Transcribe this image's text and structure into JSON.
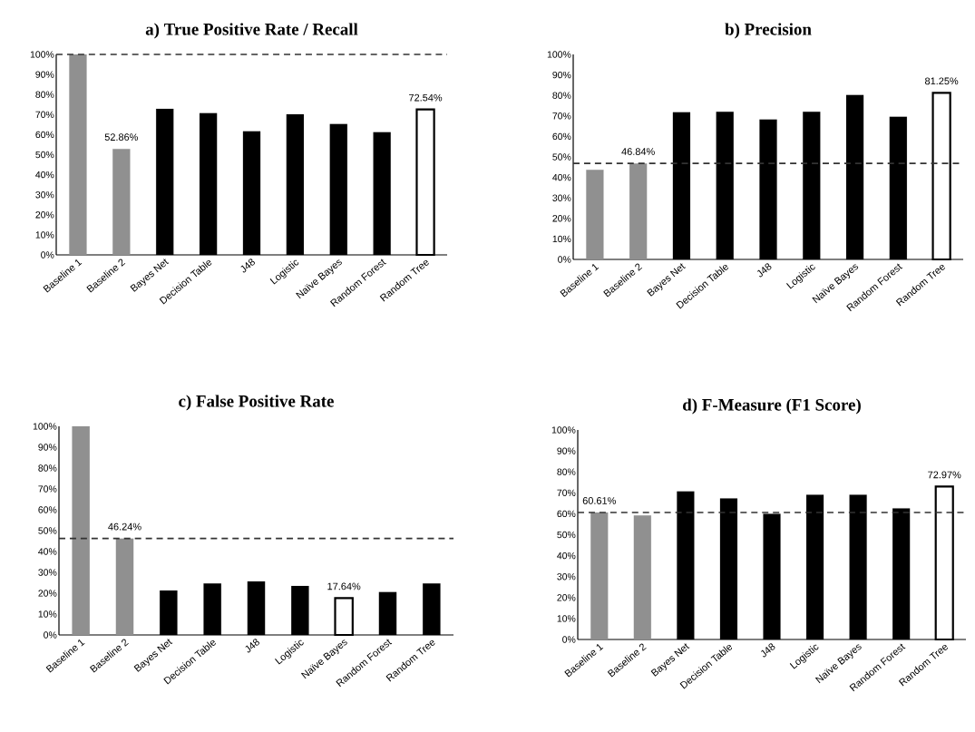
{
  "chart_data": [
    {
      "type": "bar",
      "title": "a) True Positive Rate / Recall",
      "categories": [
        "Baseline 1",
        "Baseline 2",
        "Bayes Net",
        "Decision Table",
        "J48",
        "Logistic",
        "Naïve Bayes",
        "Random Forest",
        "Random Tree"
      ],
      "values": [
        100,
        52.86,
        72.9,
        70.7,
        61.7,
        70.1,
        65.3,
        61.2,
        72.54
      ],
      "colors": [
        "#909090",
        "#909090",
        "#000000",
        "#000000",
        "#000000",
        "#000000",
        "#000000",
        "#000000",
        "#ffffff"
      ],
      "ylim": [
        0,
        100
      ],
      "yticks": [
        {
          "value": 0,
          "label": "0%"
        },
        {
          "value": 10,
          "label": "10%"
        },
        {
          "value": 20,
          "label": "20%"
        },
        {
          "value": 30,
          "label": "30%"
        },
        {
          "value": 40,
          "label": "40%"
        },
        {
          "value": 50,
          "label": "50%"
        },
        {
          "value": 60,
          "label": "60%"
        },
        {
          "value": 70,
          "label": "70%"
        },
        {
          "value": 80,
          "label": "80%"
        },
        {
          "value": 90,
          "label": "90%"
        },
        {
          "value": 100,
          "label": "100%"
        }
      ],
      "ref_lines": [
        {
          "axis": "y",
          "value": 100,
          "line_style": "dashed"
        }
      ],
      "annotations": [
        {
          "text": "52.86%",
          "x": "Baseline 2",
          "y": 52.86
        },
        {
          "text": "72.54%",
          "x": "Random Tree",
          "y": 72.54
        }
      ]
    },
    {
      "type": "bar",
      "title": "b) Precision",
      "categories": [
        "Baseline 1",
        "Baseline 2",
        "Bayes Net",
        "Decision Table",
        "J48",
        "Logistic",
        "Naïve Bayes",
        "Random Forest",
        "Random Tree"
      ],
      "values": [
        43.7,
        46.84,
        71.8,
        72.0,
        68.3,
        72.0,
        80.2,
        69.6,
        81.25
      ],
      "colors": [
        "#909090",
        "#909090",
        "#000000",
        "#000000",
        "#000000",
        "#000000",
        "#000000",
        "#000000",
        "#ffffff"
      ],
      "ylim": [
        0,
        100
      ],
      "yticks": [
        {
          "value": 0,
          "label": "0%"
        },
        {
          "value": 10,
          "label": "10%"
        },
        {
          "value": 20,
          "label": "20%"
        },
        {
          "value": 30,
          "label": "30%"
        },
        {
          "value": 40,
          "label": "40%"
        },
        {
          "value": 50,
          "label": "50%"
        },
        {
          "value": 60,
          "label": "60%"
        },
        {
          "value": 70,
          "label": "70%"
        },
        {
          "value": 80,
          "label": "80%"
        },
        {
          "value": 90,
          "label": "90%"
        },
        {
          "value": 100,
          "label": "100%"
        }
      ],
      "ref_lines": [
        {
          "axis": "y",
          "value": 46.84,
          "line_style": "dashed"
        }
      ],
      "annotations": [
        {
          "text": "46.84%",
          "x": "Baseline 2",
          "y": 46.84
        },
        {
          "text": "81.25%",
          "x": "Random Tree",
          "y": 81.25
        }
      ]
    },
    {
      "type": "bar",
      "title": "c) False Positive Rate",
      "categories": [
        "Baseline 1",
        "Baseline 2",
        "Bayes Net",
        "Decision Table",
        "J48",
        "Logistic",
        "Naïve Bayes",
        "Random Forest",
        "Random Tree"
      ],
      "values": [
        100,
        46.24,
        21.3,
        24.7,
        25.7,
        23.5,
        17.64,
        20.6,
        24.7
      ],
      "colors": [
        "#909090",
        "#909090",
        "#000000",
        "#000000",
        "#000000",
        "#000000",
        "#ffffff",
        "#000000",
        "#000000"
      ],
      "ylim": [
        0,
        100
      ],
      "yticks": [
        {
          "value": 0,
          "label": "0%"
        },
        {
          "value": 10,
          "label": "10%"
        },
        {
          "value": 20,
          "label": "20%"
        },
        {
          "value": 30,
          "label": "30%"
        },
        {
          "value": 40,
          "label": "40%"
        },
        {
          "value": 50,
          "label": "50%"
        },
        {
          "value": 60,
          "label": "60%"
        },
        {
          "value": 70,
          "label": "70%"
        },
        {
          "value": 80,
          "label": "80%"
        },
        {
          "value": 90,
          "label": "90%"
        },
        {
          "value": 100,
          "label": "100%"
        }
      ],
      "ref_lines": [
        {
          "axis": "y",
          "value": 46.24,
          "line_style": "dashed"
        }
      ],
      "annotations": [
        {
          "text": "46.24%",
          "x": "Baseline 2",
          "y": 46.24
        },
        {
          "text": "17.64%",
          "x": "Naïve Bayes",
          "y": 17.64
        }
      ]
    },
    {
      "type": "bar",
      "title": "d) F-Measure (F1 Score)",
      "categories": [
        "Baseline 1",
        "Baseline 2",
        "Bayes Net",
        "Decision Table",
        "J48",
        "Logistic",
        "Naïve Bayes",
        "Random Forest",
        "Random Tree"
      ],
      "values": [
        60.61,
        59.2,
        70.7,
        67.3,
        60.0,
        69.1,
        69.1,
        62.6,
        72.97
      ],
      "colors": [
        "#909090",
        "#909090",
        "#000000",
        "#000000",
        "#000000",
        "#000000",
        "#000000",
        "#000000",
        "#ffffff"
      ],
      "ylim": [
        0,
        100
      ],
      "yticks": [
        {
          "value": 0,
          "label": "0%"
        },
        {
          "value": 10,
          "label": "10%"
        },
        {
          "value": 20,
          "label": "20%"
        },
        {
          "value": 30,
          "label": "30%"
        },
        {
          "value": 40,
          "label": "40%"
        },
        {
          "value": 50,
          "label": "50%"
        },
        {
          "value": 60,
          "label": "60%"
        },
        {
          "value": 70,
          "label": "70%"
        },
        {
          "value": 80,
          "label": "80%"
        },
        {
          "value": 90,
          "label": "90%"
        },
        {
          "value": 100,
          "label": "100%"
        }
      ],
      "ref_lines": [
        {
          "axis": "y",
          "value": 60.61,
          "line_style": "dashed"
        }
      ],
      "annotations": [
        {
          "text": "60.61%",
          "x": "Baseline 1",
          "y": 60.61
        },
        {
          "text": "72.97%",
          "x": "Random Tree",
          "y": 72.97
        }
      ]
    }
  ]
}
